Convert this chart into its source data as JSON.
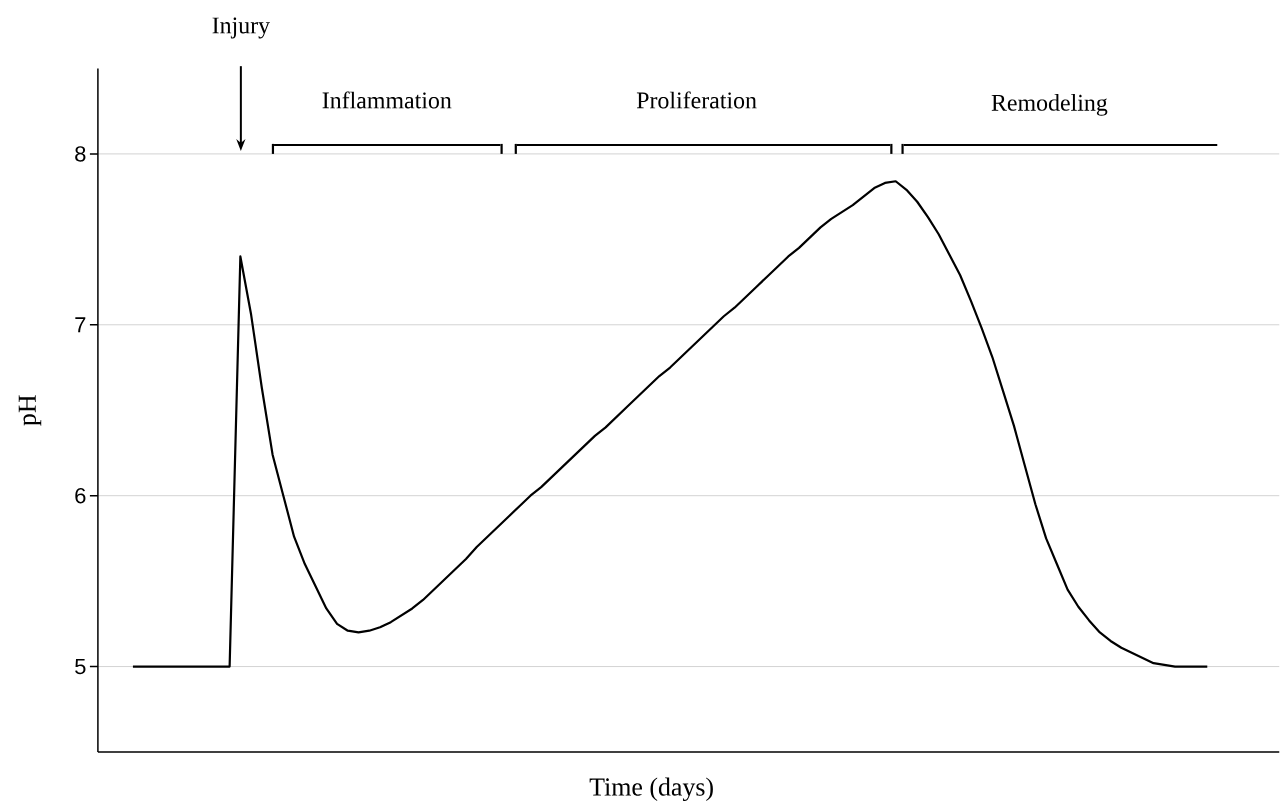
{
  "chart_data": {
    "type": "line",
    "xlabel": "Time (days)",
    "ylabel": "pH",
    "categories": [
      null,
      null,
      null,
      null,
      null,
      null,
      null,
      null,
      null,
      null,
      null,
      null,
      null,
      null,
      null,
      null,
      null,
      null,
      null,
      null,
      null,
      null,
      null,
      null,
      null,
      null,
      null,
      null,
      null,
      null,
      null,
      null,
      null,
      null,
      null,
      null,
      null,
      null,
      null,
      null,
      null,
      null,
      null,
      null,
      null,
      null,
      null,
      null,
      null,
      null,
      null,
      null,
      null,
      null,
      null,
      null,
      null,
      null,
      null,
      null,
      null,
      null,
      null,
      null,
      null,
      null,
      null,
      null,
      null,
      null,
      null,
      null,
      null,
      null,
      null,
      null,
      null,
      null,
      null,
      null,
      null,
      null,
      null,
      null,
      null,
      null,
      null,
      null,
      null,
      null,
      null,
      null,
      null,
      null,
      null,
      null,
      null,
      null,
      null,
      null,
      null
    ],
    "values": [
      5.0,
      5.0,
      5.0,
      5.0,
      5.0,
      5.0,
      5.0,
      5.0,
      5.0,
      5.0,
      7.4,
      7.06,
      6.63,
      6.24,
      6.0,
      5.76,
      5.6,
      5.47,
      5.34,
      5.25,
      5.21,
      5.2,
      5.21,
      5.23,
      5.26,
      5.3,
      5.34,
      5.39,
      5.45,
      5.51,
      5.57,
      5.63,
      5.7,
      5.76,
      5.82,
      5.88,
      5.94,
      6.0,
      6.05,
      6.11,
      6.17,
      6.23,
      6.29,
      6.35,
      6.4,
      6.46,
      6.52,
      6.58,
      6.64,
      6.7,
      6.75,
      6.81,
      6.87,
      6.93,
      6.99,
      7.05,
      7.1,
      7.16,
      7.22,
      7.28,
      7.34,
      7.4,
      7.45,
      7.51,
      7.57,
      7.62,
      7.66,
      7.7,
      7.75,
      7.8,
      7.83,
      7.84,
      7.79,
      7.72,
      7.63,
      7.53,
      7.41,
      7.29,
      7.14,
      6.98,
      6.81,
      6.61,
      6.41,
      6.18,
      5.95,
      5.75,
      5.6,
      5.45,
      5.35,
      5.27,
      5.2,
      5.15,
      5.11,
      5.08,
      5.05,
      5.02,
      5.01,
      5.0,
      5.0,
      5.0,
      5.0
    ],
    "color": "#000000",
    "marker": "none",
    "line_style": "solid",
    "ylim": [
      4.5,
      8.5
    ],
    "yticks": [
      5,
      6,
      7,
      8
    ],
    "grid": "y",
    "tick_labels": "y",
    "annotations": [
      "Injury",
      "Inflammation",
      "Proliferation",
      "Remodeling"
    ]
  }
}
